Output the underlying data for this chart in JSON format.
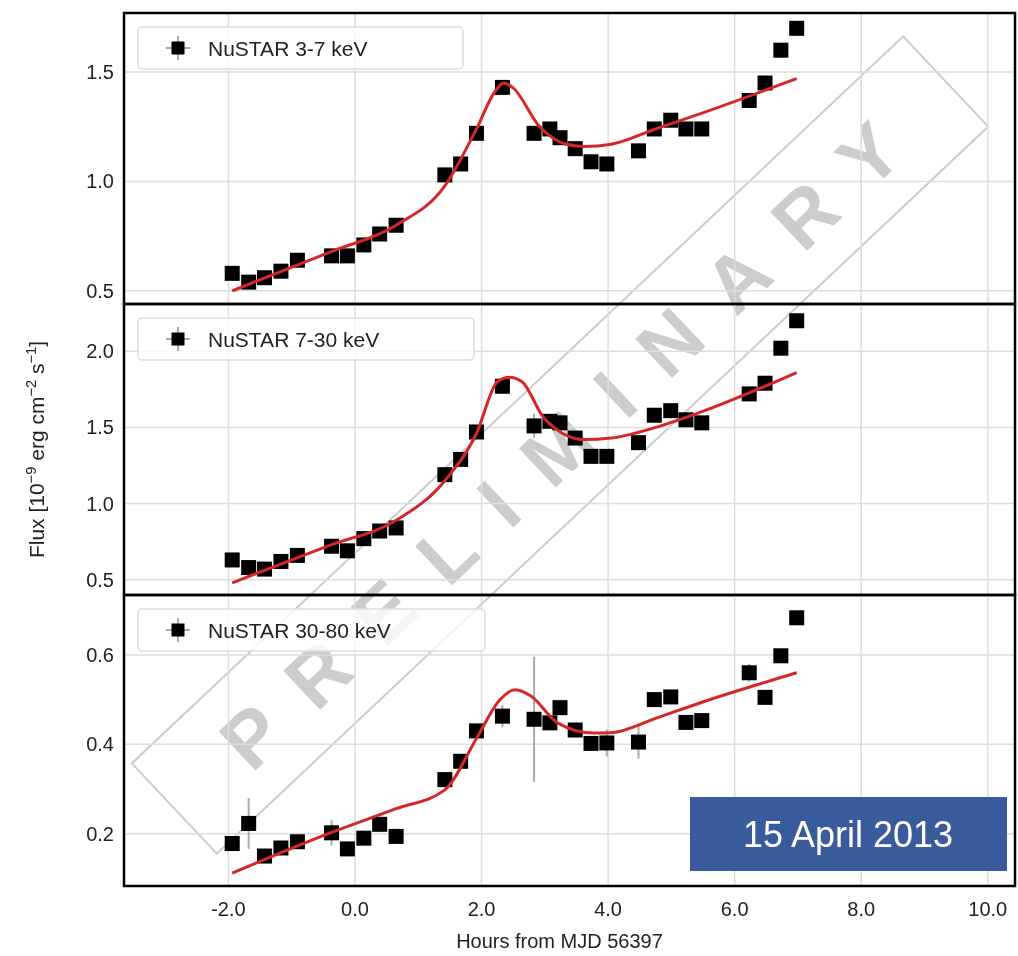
{
  "chart_data": [
    {
      "type": "scatter",
      "xlim": [
        -3.65,
        10.43
      ],
      "ylim": [
        0.44,
        1.77
      ],
      "xticks": [
        {
          "value": -2,
          "label": null
        },
        {
          "value": 0,
          "label": null
        },
        {
          "value": 2,
          "label": null
        },
        {
          "value": 4,
          "label": null
        },
        {
          "value": 6,
          "label": null
        },
        {
          "value": 8,
          "label": null
        },
        {
          "value": 10,
          "label": null
        }
      ],
      "yticks": [
        {
          "value": 0.5,
          "label": "0.5"
        },
        {
          "value": 1,
          "label": "1.0"
        },
        {
          "value": 1.5,
          "label": "1.5"
        }
      ],
      "tick_labels": "y",
      "grid": true,
      "legend": "top left",
      "marker": "square",
      "series": [
        {
          "name": "NuSTAR 3-7 keV",
          "type": "scatter",
          "color": "#000000",
          "x": [
            -1.94,
            -1.68,
            -1.43,
            -1.17,
            -0.91,
            -0.37,
            -0.12,
            0.14,
            0.39,
            0.65,
            1.42,
            1.67,
            1.92,
            2.33,
            2.83,
            3.08,
            3.24,
            3.48,
            3.73,
            3.98,
            4.48,
            4.73,
            4.99,
            5.23,
            5.48,
            6.23,
            6.48,
            6.73,
            6.98
          ],
          "values": [
            0.58,
            0.54,
            0.56,
            0.59,
            0.64,
            0.66,
            0.66,
            0.71,
            0.76,
            0.8,
            1.03,
            1.08,
            1.22,
            1.43,
            1.22,
            1.24,
            1.2,
            1.15,
            1.09,
            1.08,
            1.14,
            1.24,
            1.28,
            1.24,
            1.24,
            1.37,
            1.45,
            1.6,
            1.7
          ],
          "errors": [
            null,
            null,
            null,
            null,
            null,
            null,
            null,
            null,
            null,
            null,
            null,
            null,
            null,
            null,
            0.03,
            null,
            null,
            null,
            null,
            null,
            null,
            null,
            null,
            null,
            null,
            null,
            null,
            null,
            null
          ]
        },
        {
          "type": "line",
          "color": "#d62728",
          "marker": "none",
          "x": [
            -1.94,
            -0.37,
            0.65,
            1.42,
            1.92,
            2.21,
            2.35,
            2.49,
            2.92,
            3.34,
            3.62,
            4.05,
            4.75,
            5.46,
            6.98
          ],
          "values": [
            0.5,
            0.68,
            0.8,
            0.98,
            1.24,
            1.41,
            1.45,
            1.43,
            1.25,
            1.17,
            1.16,
            1.17,
            1.24,
            1.31,
            1.47
          ]
        }
      ]
    },
    {
      "type": "scatter",
      "xlim": [
        -3.65,
        10.43
      ],
      "ylim": [
        0.4,
        2.31
      ],
      "xticks": [
        {
          "value": -2,
          "label": null
        },
        {
          "value": 0,
          "label": null
        },
        {
          "value": 2,
          "label": null
        },
        {
          "value": 4,
          "label": null
        },
        {
          "value": 6,
          "label": null
        },
        {
          "value": 8,
          "label": null
        },
        {
          "value": 10,
          "label": null
        }
      ],
      "yticks": [
        {
          "value": 0.5,
          "label": "0.5"
        },
        {
          "value": 1,
          "label": "1.0"
        },
        {
          "value": 1.5,
          "label": "1.5"
        },
        {
          "value": 2,
          "label": "2.0"
        }
      ],
      "tick_labels": "y",
      "grid": true,
      "legend": "top left",
      "marker": "square",
      "ylabel": "Flux [10$^{−9}$ erg cm$^{−2}$ s$^{−1}$]",
      "series": [
        {
          "name": "NuSTAR 7-30 keV",
          "type": "scatter",
          "color": "#000000",
          "x": [
            -1.94,
            -1.68,
            -1.43,
            -1.17,
            -0.91,
            -0.37,
            -0.12,
            0.14,
            0.39,
            0.65,
            1.42,
            1.67,
            1.92,
            2.33,
            2.83,
            3.08,
            3.24,
            3.48,
            3.73,
            3.98,
            4.48,
            4.73,
            4.99,
            5.23,
            5.48,
            6.23,
            6.48,
            6.73,
            6.98
          ],
          "values": [
            0.63,
            0.58,
            0.57,
            0.62,
            0.66,
            0.72,
            0.69,
            0.77,
            0.82,
            0.84,
            1.19,
            1.29,
            1.47,
            1.77,
            1.51,
            1.54,
            1.53,
            1.43,
            1.31,
            1.31,
            1.4,
            1.58,
            1.61,
            1.55,
            1.53,
            1.72,
            1.79,
            2.02,
            2.2
          ],
          "errors": [
            null,
            null,
            null,
            null,
            null,
            null,
            null,
            null,
            null,
            null,
            null,
            null,
            null,
            null,
            0.08,
            null,
            null,
            null,
            null,
            null,
            null,
            null,
            null,
            null,
            null,
            null,
            null,
            null,
            null
          ]
        },
        {
          "type": "line",
          "color": "#d62728",
          "marker": "none",
          "x": [
            -1.94,
            -0.37,
            0.65,
            1.42,
            1.92,
            2.25,
            2.44,
            2.64,
            2.99,
            3.62,
            4.05,
            4.75,
            5.46,
            6.98
          ],
          "values": [
            0.48,
            0.73,
            0.89,
            1.15,
            1.46,
            1.8,
            1.83,
            1.8,
            1.56,
            1.42,
            1.43,
            1.5,
            1.6,
            1.86
          ]
        }
      ]
    },
    {
      "type": "scatter",
      "xlim": [
        -3.65,
        10.43
      ],
      "ylim": [
        0.083,
        0.734
      ],
      "xticks": [
        {
          "value": -2,
          "label": "-2.0"
        },
        {
          "value": 0,
          "label": "0.0"
        },
        {
          "value": 2,
          "label": "2.0"
        },
        {
          "value": 4,
          "label": "4.0"
        },
        {
          "value": 6,
          "label": "6.0"
        },
        {
          "value": 8,
          "label": "8.0"
        },
        {
          "value": 10,
          "label": "10.0"
        }
      ],
      "yticks": [
        {
          "value": 0.2,
          "label": "0.2"
        },
        {
          "value": 0.4,
          "label": "0.4"
        },
        {
          "value": 0.6,
          "label": "0.6"
        }
      ],
      "grid": true,
      "legend": "top left",
      "marker": "square",
      "xlabel": "Hours from MJD 56397",
      "annotations": [
        "15 April 2013",
        "PRELIMINARY"
      ],
      "series": [
        {
          "name": "NuSTAR 30-80 keV",
          "type": "scatter",
          "color": "#000000",
          "x": [
            -1.94,
            -1.68,
            -1.43,
            -1.17,
            -0.91,
            -0.37,
            -0.12,
            0.14,
            0.39,
            0.65,
            1.42,
            1.67,
            1.92,
            2.33,
            2.83,
            3.08,
            3.24,
            3.48,
            3.73,
            3.98,
            4.48,
            4.73,
            4.99,
            5.23,
            5.48,
            6.23,
            6.48,
            6.73,
            6.98
          ],
          "values": [
            0.178,
            0.223,
            0.15,
            0.168,
            0.182,
            0.202,
            0.166,
            0.19,
            0.221,
            0.194,
            0.321,
            0.362,
            0.43,
            0.463,
            0.456,
            0.448,
            0.482,
            0.432,
            0.402,
            0.403,
            0.405,
            0.5,
            0.506,
            0.449,
            0.453,
            0.56,
            0.505,
            0.598,
            0.683
          ],
          "errors": [
            null,
            0.057,
            null,
            null,
            null,
            0.028,
            null,
            null,
            null,
            null,
            null,
            null,
            null,
            0.025,
            0.14,
            null,
            null,
            null,
            null,
            0.03,
            0.037,
            null,
            null,
            null,
            null,
            0.02,
            null,
            null,
            null
          ]
        },
        {
          "type": "line",
          "color": "#d62728",
          "marker": "none",
          "x": [
            -1.94,
            -0.37,
            0.65,
            1.42,
            1.92,
            2.28,
            2.53,
            2.78,
            3.2,
            3.77,
            4.05,
            4.75,
            5.46,
            6.98
          ],
          "values": [
            0.112,
            0.203,
            0.256,
            0.298,
            0.413,
            0.498,
            0.522,
            0.508,
            0.448,
            0.425,
            0.426,
            0.458,
            0.493,
            0.56
          ]
        }
      ]
    }
  ]
}
